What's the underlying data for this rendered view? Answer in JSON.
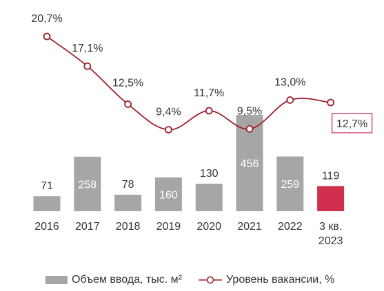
{
  "chart_data": {
    "type": "bar+line",
    "categories": [
      "2016",
      "2017",
      "2018",
      "2019",
      "2020",
      "2021",
      "2022",
      "3 кв.\n2023"
    ],
    "series": [
      {
        "name": "Объем ввода, тыс. м²",
        "type": "bar",
        "values": [
          71,
          258,
          78,
          160,
          130,
          456,
          259,
          119
        ],
        "value_labels": [
          "71",
          "258",
          "78",
          "160",
          "130",
          "456",
          "259",
          "119"
        ]
      },
      {
        "name": "Уровень вакансии, %",
        "type": "line",
        "values": [
          20.7,
          17.1,
          12.5,
          9.4,
          11.7,
          9.5,
          13.0,
          12.7
        ],
        "value_labels": [
          "20,7%",
          "17,1%",
          "12,5%",
          "9,4%",
          "11,7%",
          "9,5%",
          "13,0%",
          "12,7%"
        ]
      }
    ],
    "highlight_index": 7,
    "legend_position": "bottom",
    "grid": false
  },
  "colors": {
    "bar": "#a6a6a6",
    "bar_highlight": "#d0304d",
    "line": "#a01e2c",
    "marker_fill": "#ffffff",
    "label_dark": "#333333",
    "label_light": "#ffffff"
  }
}
